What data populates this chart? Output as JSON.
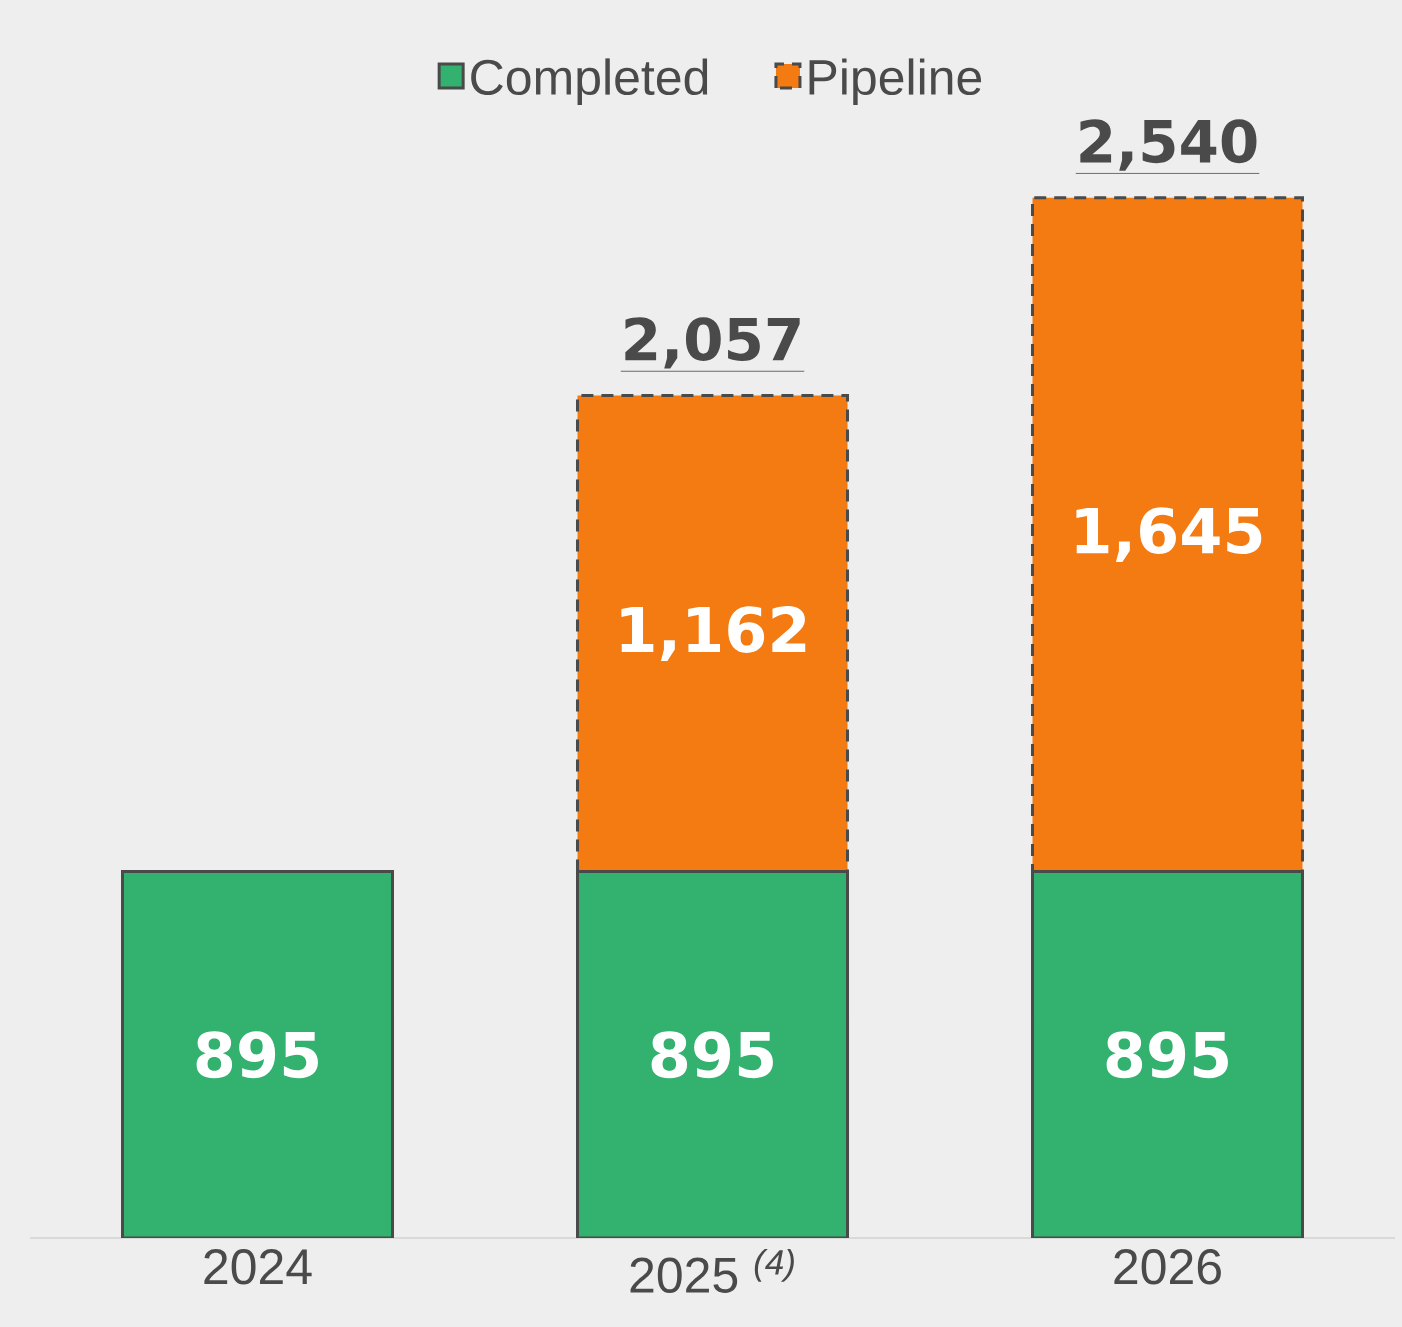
{
  "chart_data": {
    "type": "bar",
    "stacked": true,
    "categories": [
      "2024",
      "2025 *$^{(4)}$*",
      "2026"
    ],
    "series": [
      {
        "name": "Completed",
        "color": "#33b16f",
        "values": [
          895,
          895,
          895
        ],
        "value_labels": [
          "895",
          "895",
          "895"
        ]
      },
      {
        "name": "Pipeline",
        "color": "#f47a12",
        "line_style": "dashed",
        "values": [
          null,
          1162,
          1645
        ],
        "value_labels": [
          null,
          "1,162",
          "1,645"
        ]
      }
    ],
    "totals": [
      null,
      "2,057",
      "2,540"
    ],
    "legend": "top"
  }
}
